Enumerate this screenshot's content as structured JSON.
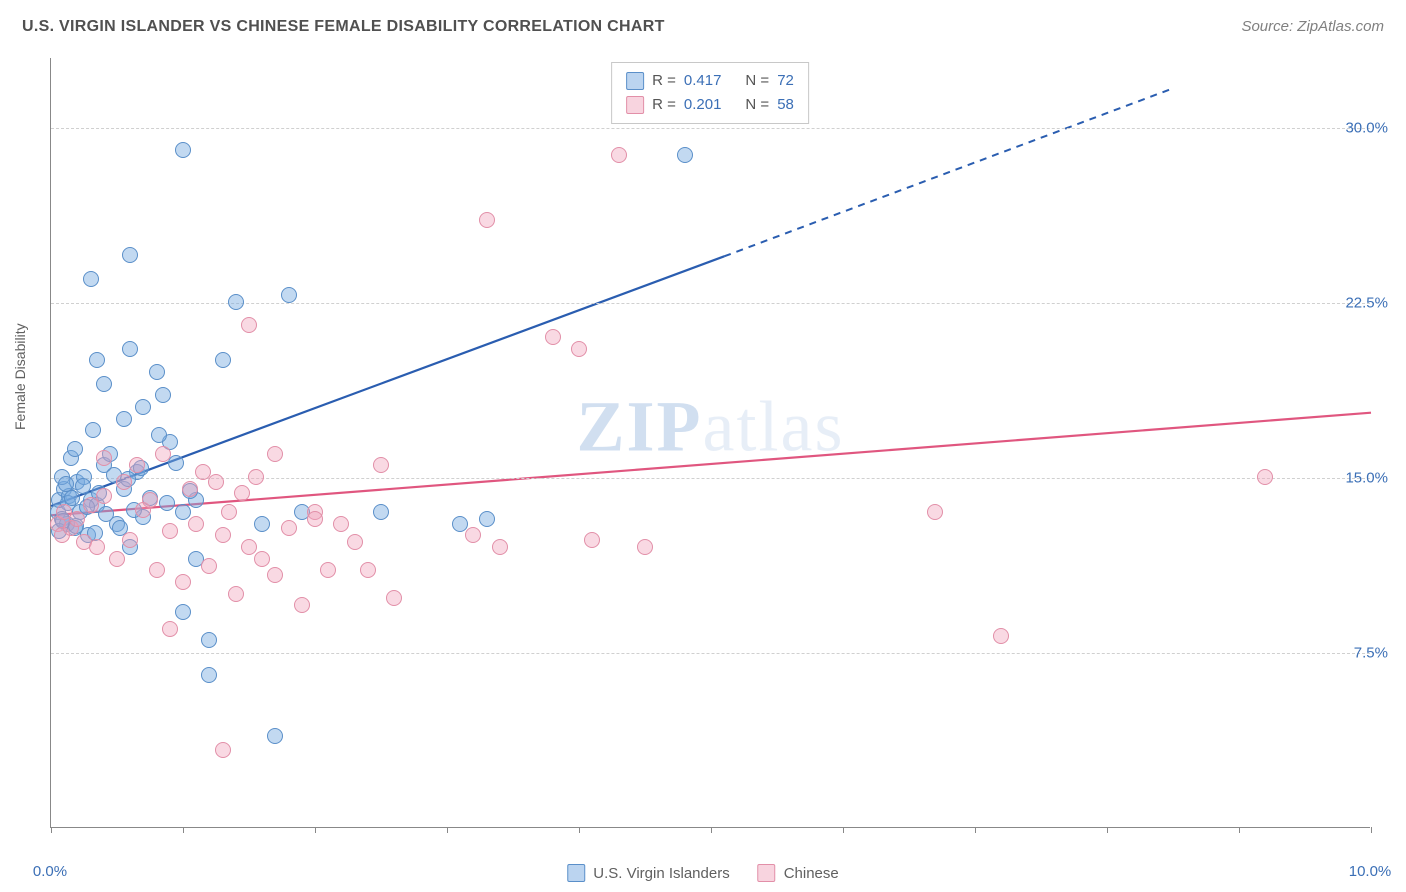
{
  "title": "U.S. VIRGIN ISLANDER VS CHINESE FEMALE DISABILITY CORRELATION CHART",
  "source": "Source: ZipAtlas.com",
  "watermark": {
    "bold": "ZIP",
    "rest": "atlas"
  },
  "y_axis": {
    "label": "Female Disability"
  },
  "chart": {
    "type": "scatter",
    "background_color": "#ffffff",
    "grid_color": "#d0d0d0",
    "axis_color": "#888888",
    "label_color": "#3b6fb6",
    "title_fontsize": 16,
    "label_fontsize": 15,
    "x_domain": [
      0,
      10
    ],
    "y_domain": [
      0,
      33
    ],
    "y_ticks": [
      {
        "value": 7.5,
        "label": "7.5%"
      },
      {
        "value": 15.0,
        "label": "15.0%"
      },
      {
        "value": 22.5,
        "label": "22.5%"
      },
      {
        "value": 30.0,
        "label": "30.0%"
      }
    ],
    "x_ticks": [
      0,
      1,
      2,
      3,
      4,
      5,
      6,
      7,
      8,
      9,
      10
    ],
    "x_tick_labels": [
      {
        "value": 0,
        "label": "0.0%"
      },
      {
        "value": 10,
        "label": "10.0%"
      }
    ],
    "series": [
      {
        "name": "U.S. Virgin Islanders",
        "color_fill": "rgba(120,170,225,0.45)",
        "color_stroke": "#5a8fc9",
        "line_color": "#2a5db0",
        "R": "0.417",
        "N": "72",
        "trend": {
          "x1": 0,
          "y1": 13.8,
          "x2": 5.1,
          "y2": 24.5,
          "dash_to_x": 8.5,
          "dash_to_y": 31.7
        },
        "points": [
          [
            0.05,
            13.5
          ],
          [
            0.06,
            14.0
          ],
          [
            0.08,
            13.2
          ],
          [
            0.1,
            14.5
          ],
          [
            0.12,
            13.0
          ],
          [
            0.14,
            14.2
          ],
          [
            0.18,
            12.8
          ],
          [
            0.2,
            14.8
          ],
          [
            0.22,
            13.5
          ],
          [
            0.25,
            15.0
          ],
          [
            0.28,
            12.5
          ],
          [
            0.3,
            14.0
          ],
          [
            0.35,
            13.8
          ],
          [
            0.4,
            15.5
          ],
          [
            0.45,
            16.0
          ],
          [
            0.5,
            13.0
          ],
          [
            0.55,
            14.5
          ],
          [
            0.6,
            12.0
          ],
          [
            0.65,
            15.2
          ],
          [
            0.7,
            13.3
          ],
          [
            0.3,
            23.5
          ],
          [
            0.35,
            20.0
          ],
          [
            0.4,
            19.0
          ],
          [
            0.55,
            17.5
          ],
          [
            0.6,
            20.5
          ],
          [
            0.7,
            18.0
          ],
          [
            0.8,
            19.5
          ],
          [
            0.85,
            18.5
          ],
          [
            0.9,
            16.5
          ],
          [
            1.0,
            13.5
          ],
          [
            1.1,
            14.0
          ],
          [
            1.2,
            6.5
          ],
          [
            1.3,
            20.0
          ],
          [
            1.0,
            29.0
          ],
          [
            0.6,
            24.5
          ],
          [
            1.4,
            22.5
          ],
          [
            1.8,
            22.8
          ],
          [
            1.9,
            13.5
          ],
          [
            1.0,
            9.2
          ],
          [
            1.1,
            11.5
          ],
          [
            1.2,
            8.0
          ],
          [
            1.6,
            13.0
          ],
          [
            1.7,
            3.9
          ],
          [
            2.5,
            13.5
          ],
          [
            3.1,
            13.0
          ],
          [
            3.3,
            13.2
          ],
          [
            4.8,
            28.8
          ],
          [
            0.15,
            15.8
          ],
          [
            0.18,
            16.2
          ],
          [
            0.32,
            17.0
          ],
          [
            0.08,
            15.0
          ],
          [
            0.11,
            14.7
          ],
          [
            0.13,
            13.9
          ],
          [
            0.06,
            12.7
          ],
          [
            0.09,
            13.1
          ],
          [
            0.16,
            14.1
          ],
          [
            0.19,
            12.9
          ],
          [
            0.24,
            14.6
          ],
          [
            0.27,
            13.7
          ],
          [
            0.33,
            12.6
          ],
          [
            0.36,
            14.3
          ],
          [
            0.42,
            13.4
          ],
          [
            0.48,
            15.1
          ],
          [
            0.52,
            12.8
          ],
          [
            0.58,
            14.9
          ],
          [
            0.63,
            13.6
          ],
          [
            0.68,
            15.4
          ],
          [
            0.75,
            14.1
          ],
          [
            0.82,
            16.8
          ],
          [
            0.88,
            13.9
          ],
          [
            0.95,
            15.6
          ],
          [
            1.05,
            14.4
          ]
        ]
      },
      {
        "name": "Chinese",
        "color_fill": "rgba(240,160,185,0.40)",
        "color_stroke": "#e28fa8",
        "line_color": "#e0567f",
        "R": "0.201",
        "N": "58",
        "trend": {
          "x1": 0,
          "y1": 13.4,
          "x2": 10.0,
          "y2": 17.8
        },
        "points": [
          [
            0.05,
            13.0
          ],
          [
            0.08,
            12.5
          ],
          [
            0.1,
            13.5
          ],
          [
            0.15,
            12.8
          ],
          [
            0.2,
            13.2
          ],
          [
            0.25,
            12.2
          ],
          [
            0.3,
            13.8
          ],
          [
            0.35,
            12.0
          ],
          [
            0.4,
            14.2
          ],
          [
            0.5,
            11.5
          ],
          [
            0.6,
            12.3
          ],
          [
            0.7,
            13.6
          ],
          [
            0.8,
            11.0
          ],
          [
            0.9,
            12.7
          ],
          [
            1.0,
            10.5
          ],
          [
            1.1,
            13.0
          ],
          [
            1.2,
            11.2
          ],
          [
            1.3,
            12.5
          ],
          [
            1.4,
            10.0
          ],
          [
            1.5,
            12.0
          ],
          [
            1.6,
            11.5
          ],
          [
            1.7,
            10.8
          ],
          [
            1.8,
            12.8
          ],
          [
            1.9,
            9.5
          ],
          [
            2.0,
            13.5
          ],
          [
            2.1,
            11.0
          ],
          [
            2.2,
            13.0
          ],
          [
            2.3,
            12.2
          ],
          [
            2.4,
            11.0
          ],
          [
            2.5,
            15.5
          ],
          [
            1.5,
            21.5
          ],
          [
            1.7,
            16.0
          ],
          [
            2.0,
            13.2
          ],
          [
            3.4,
            12.0
          ],
          [
            2.6,
            9.8
          ],
          [
            1.3,
            3.3
          ],
          [
            0.9,
            8.5
          ],
          [
            4.3,
            28.8
          ],
          [
            3.3,
            26.0
          ],
          [
            3.8,
            21.0
          ],
          [
            4.0,
            20.5
          ],
          [
            3.2,
            12.5
          ],
          [
            4.1,
            12.3
          ],
          [
            4.5,
            12.0
          ],
          [
            6.7,
            13.5
          ],
          [
            7.2,
            8.2
          ],
          [
            9.2,
            15.0
          ],
          [
            0.4,
            15.8
          ],
          [
            0.55,
            14.8
          ],
          [
            0.65,
            15.5
          ],
          [
            0.75,
            14.0
          ],
          [
            0.85,
            16.0
          ],
          [
            1.05,
            14.5
          ],
          [
            1.15,
            15.2
          ],
          [
            1.25,
            14.8
          ],
          [
            1.35,
            13.5
          ],
          [
            1.45,
            14.3
          ],
          [
            1.55,
            15.0
          ]
        ]
      }
    ]
  },
  "legend_top": {
    "rows": [
      {
        "swatch": "blue",
        "r_label": "R =",
        "r_val": "0.417",
        "n_label": "N =",
        "n_val": "72"
      },
      {
        "swatch": "pink",
        "r_label": "R =",
        "r_val": "0.201",
        "n_label": "N =",
        "n_val": "58"
      }
    ]
  },
  "legend_bottom": {
    "items": [
      {
        "swatch": "blue",
        "label": "U.S. Virgin Islanders"
      },
      {
        "swatch": "pink",
        "label": "Chinese"
      }
    ]
  }
}
